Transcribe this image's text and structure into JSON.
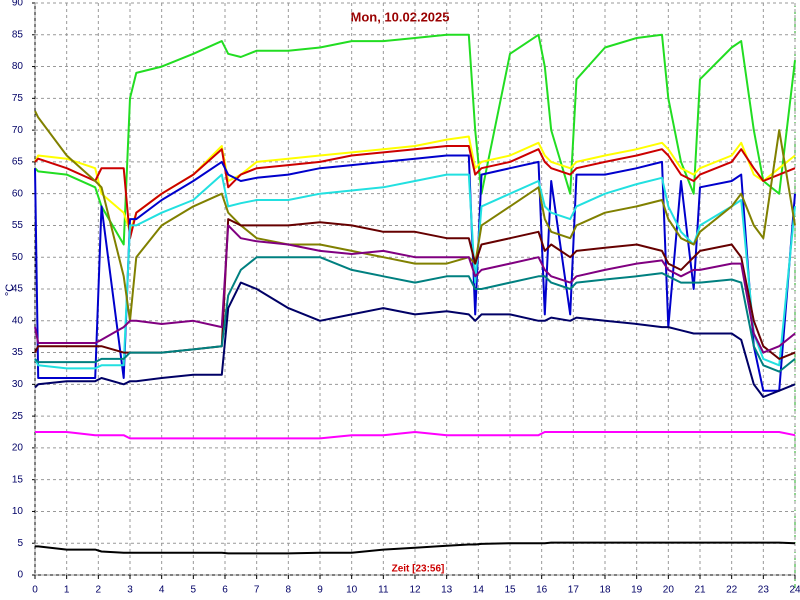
{
  "chart_data": {
    "type": "line",
    "title": "Mon, 10.02.2025",
    "ylabel": "°C",
    "xlabel": "Zeit [23:56]",
    "xlim": [
      0,
      24
    ],
    "ylim": [
      0,
      90
    ],
    "xticks": [
      0,
      1,
      2,
      3,
      4,
      5,
      6,
      7,
      8,
      9,
      10,
      11,
      12,
      13,
      14,
      15,
      16,
      17,
      18,
      19,
      20,
      21,
      22,
      23,
      24
    ],
    "yticks": [
      0,
      5,
      10,
      15,
      20,
      25,
      30,
      35,
      40,
      45,
      50,
      55,
      60,
      65,
      70,
      75,
      80,
      85,
      90
    ],
    "grid": true,
    "x": [
      0,
      0.1,
      1,
      1.9,
      2.1,
      2.8,
      3.0,
      3.2,
      4,
      5,
      5.9,
      6.1,
      6.5,
      7,
      8,
      9,
      10,
      11,
      12,
      13,
      13.7,
      13.9,
      14.1,
      15,
      15.9,
      16.1,
      16.3,
      16.9,
      17.1,
      18,
      19,
      19.8,
      20.0,
      20.4,
      20.8,
      21,
      22,
      22.3,
      22.7,
      23,
      23.5,
      24
    ],
    "series": [
      {
        "color": "#22dd22",
        "values": [
          64,
          63.5,
          63,
          61,
          58,
          52,
          75,
          79,
          80,
          82,
          84,
          82,
          81.5,
          82.5,
          82.5,
          83,
          84,
          84,
          84.5,
          85,
          85,
          70,
          60,
          82,
          85,
          80,
          70,
          60,
          78,
          83,
          84.5,
          85,
          75,
          65,
          60,
          78,
          83,
          84,
          70,
          62,
          60,
          81
        ]
      },
      {
        "color": "#ffff00",
        "values": [
          65,
          66,
          65.5,
          64,
          60,
          57,
          54,
          57,
          60,
          63,
          67.5,
          62,
          63,
          65,
          65.5,
          66,
          66.5,
          67,
          67.5,
          68.5,
          69,
          64,
          65,
          66,
          68,
          66,
          65,
          64,
          65,
          66,
          67,
          68,
          67,
          64,
          63,
          64,
          66,
          68,
          63,
          62,
          64,
          66
        ]
      },
      {
        "color": "#cc0000",
        "values": [
          65,
          65.5,
          64,
          62,
          64,
          64,
          53,
          57,
          60,
          63,
          67,
          61,
          63,
          64,
          64.5,
          65,
          66,
          66.5,
          67,
          67.5,
          67.5,
          63,
          64,
          65,
          67,
          65,
          64,
          63,
          64,
          65,
          66,
          67,
          66,
          63,
          62,
          63,
          65,
          67,
          64,
          62,
          63,
          64
        ]
      },
      {
        "color": "#0000cc",
        "values": [
          64,
          31,
          31,
          31,
          58,
          31,
          56,
          56,
          59,
          62,
          65,
          63,
          62,
          62.5,
          63,
          64,
          64.5,
          65,
          65.5,
          66,
          66,
          41,
          63,
          64,
          65,
          41,
          62,
          41,
          63,
          63,
          64,
          65,
          39,
          62,
          45,
          61,
          62,
          63,
          36,
          29,
          29,
          60
        ]
      },
      {
        "color": "#22e0e0",
        "values": [
          34,
          33,
          32.5,
          32.5,
          33,
          33,
          55,
          55,
          57,
          59,
          63,
          58,
          58.5,
          59,
          59,
          60,
          60.5,
          61,
          62,
          63,
          63,
          46,
          58,
          60,
          62,
          58,
          57,
          56,
          58,
          60,
          61.5,
          62.5,
          58,
          54,
          52,
          55,
          58,
          59,
          38,
          34,
          33,
          58
        ]
      },
      {
        "color": "#808000",
        "values": [
          73,
          72,
          66,
          62,
          61,
          47,
          40,
          50,
          55,
          58,
          60,
          57,
          55,
          53,
          52,
          52,
          51,
          50,
          49,
          49,
          50,
          49,
          55,
          58,
          61,
          56,
          54,
          53,
          55,
          57,
          58,
          59,
          56,
          53,
          52,
          54,
          58,
          60,
          55,
          53,
          70,
          55
        ]
      },
      {
        "color": "#660000",
        "values": [
          35,
          36,
          36,
          36,
          36,
          35,
          35,
          35,
          35,
          35.5,
          36,
          56,
          55,
          55,
          55,
          55.5,
          55,
          54,
          54,
          53,
          53,
          49,
          52,
          53,
          54,
          51,
          52,
          50,
          51,
          51.5,
          52,
          51,
          49,
          48,
          50,
          51,
          52,
          50,
          40,
          36,
          34,
          35
        ]
      },
      {
        "color": "#800080",
        "values": [
          39,
          36.5,
          36.5,
          36.5,
          37,
          39,
          40,
          40,
          39.5,
          40,
          39,
          55,
          53,
          52.5,
          52,
          51,
          50.5,
          51,
          50,
          50,
          50,
          47,
          48,
          49,
          50,
          48,
          47,
          46,
          47,
          48,
          49,
          49.5,
          48,
          47,
          48,
          48,
          49,
          49,
          38,
          35,
          36,
          38
        ]
      },
      {
        "color": "#008080",
        "values": [
          34,
          33.5,
          33.5,
          33.5,
          34,
          34,
          35,
          35,
          35,
          35.5,
          36,
          44,
          48,
          50,
          50,
          50,
          48,
          47,
          46,
          47,
          47,
          45,
          45,
          46,
          47,
          47,
          46,
          45,
          46,
          46.5,
          47,
          47.5,
          47,
          46,
          46,
          46,
          46.5,
          46,
          36,
          33,
          32,
          34
        ]
      },
      {
        "color": "#000066",
        "values": [
          29.5,
          30,
          30.5,
          30.5,
          31,
          30,
          30.5,
          30.5,
          31,
          31.5,
          31.5,
          42,
          46,
          45,
          42,
          40,
          41,
          42,
          41,
          41.5,
          41,
          40,
          41,
          41,
          40,
          40,
          40.5,
          40,
          40.5,
          40,
          39.5,
          39,
          39,
          38.5,
          38,
          38,
          38,
          37,
          30,
          28,
          29,
          30
        ]
      },
      {
        "color": "#ff00ff",
        "values": [
          22.5,
          22.5,
          22.5,
          22,
          22,
          22,
          21.5,
          21.5,
          21.5,
          21.5,
          21.5,
          21.5,
          21.5,
          21.5,
          21.5,
          21.5,
          22,
          22,
          22.5,
          22,
          22,
          22,
          22,
          22,
          22,
          22.5,
          22.5,
          22.5,
          22.5,
          22.5,
          22.5,
          22.5,
          22.5,
          22.5,
          22.5,
          22.5,
          22.5,
          22.5,
          22.5,
          22.5,
          22.5,
          22
        ]
      },
      {
        "color": "#000000",
        "values": [
          4.5,
          4.5,
          4,
          4,
          3.7,
          3.5,
          3.5,
          3.5,
          3.5,
          3.5,
          3.5,
          3.4,
          3.4,
          3.4,
          3.4,
          3.5,
          3.5,
          4,
          4.3,
          4.6,
          4.8,
          4.8,
          4.9,
          5,
          5,
          5,
          5.1,
          5.1,
          5.1,
          5.1,
          5.1,
          5.1,
          5.1,
          5.1,
          5.1,
          5.1,
          5.1,
          5.1,
          5.1,
          5.1,
          5.1,
          5
        ]
      }
    ]
  }
}
